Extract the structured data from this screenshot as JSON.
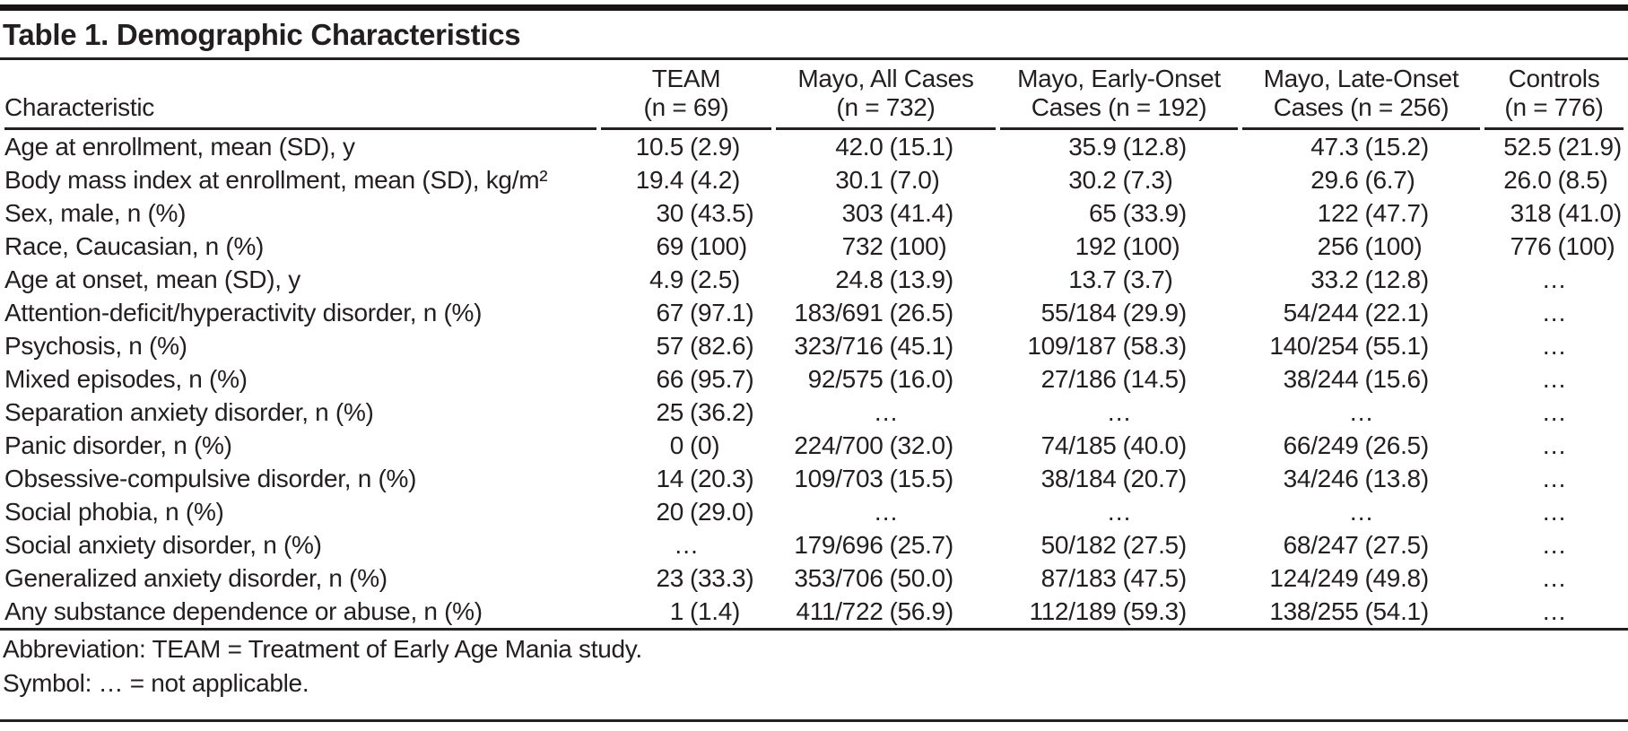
{
  "table": {
    "title": "Table 1. Demographic Characteristics",
    "not_applicable_symbol": "…",
    "columns": [
      {
        "line1": "Characteristic",
        "line2": ""
      },
      {
        "line1": "TEAM",
        "line2": "(n = 69)"
      },
      {
        "line1": "Mayo, All Cases",
        "line2": "(n = 732)"
      },
      {
        "line1": "Mayo, Early-Onset",
        "line2": "Cases (n = 192)"
      },
      {
        "line1": "Mayo, Late-Onset",
        "line2": "Cases (n = 256)"
      },
      {
        "line1": "Controls",
        "line2": "(n = 776)"
      }
    ],
    "rows": [
      {
        "label": "Age at enrollment, mean (SD), y",
        "values": [
          "10.5 (2.9)",
          "42.0 (15.1)",
          "35.9 (12.8)",
          "47.3 (15.2)",
          "52.5 (21.9)"
        ]
      },
      {
        "label": "Body mass index at enrollment, mean (SD), kg/m²",
        "values": [
          "19.4 (4.2)",
          "30.1 (7.0)",
          "30.2 (7.3)",
          "29.6 (6.7)",
          "26.0 (8.5)"
        ]
      },
      {
        "label": "Sex, male, n (%)",
        "values": [
          "30 (43.5)",
          "303 (41.4)",
          "65 (33.9)",
          "122 (47.7)",
          "318 (41.0)"
        ]
      },
      {
        "label": "Race, Caucasian, n (%)",
        "values": [
          "69 (100)",
          "732 (100)",
          "192 (100)",
          "256 (100)",
          "776 (100)"
        ]
      },
      {
        "label": "Age at onset, mean (SD), y",
        "values": [
          "4.9 (2.5)",
          "24.8 (13.9)",
          "13.7 (3.7)",
          "33.2 (12.8)",
          "…"
        ]
      },
      {
        "label": "Attention-deficit/hyperactivity disorder, n (%)",
        "values": [
          "67 (97.1)",
          "183/691 (26.5)",
          "55/184 (29.9)",
          "54/244 (22.1)",
          "…"
        ]
      },
      {
        "label": "Psychosis, n (%)",
        "values": [
          "57 (82.6)",
          "323/716 (45.1)",
          "109/187 (58.3)",
          "140/254 (55.1)",
          "…"
        ]
      },
      {
        "label": "Mixed episodes, n (%)",
        "values": [
          "66 (95.7)",
          "92/575 (16.0)",
          "27/186 (14.5)",
          "38/244 (15.6)",
          "…"
        ]
      },
      {
        "label": "Separation anxiety disorder, n (%)",
        "values": [
          "25 (36.2)",
          "…",
          "…",
          "…",
          "…"
        ]
      },
      {
        "label": "Panic disorder, n (%)",
        "values": [
          "0 (0)",
          "224/700 (32.0)",
          "74/185 (40.0)",
          "66/249 (26.5)",
          "…"
        ]
      },
      {
        "label": "Obsessive-compulsive disorder, n (%)",
        "values": [
          "14 (20.3)",
          "109/703 (15.5)",
          "38/184 (20.7)",
          "34/246 (13.8)",
          "…"
        ]
      },
      {
        "label": "Social phobia, n (%)",
        "values": [
          "20 (29.0)",
          "…",
          "…",
          "…",
          "…"
        ]
      },
      {
        "label": "Social anxiety disorder, n (%)",
        "values": [
          "…",
          "179/696 (25.7)",
          "50/182 (27.5)",
          "68/247 (27.5)",
          "…"
        ]
      },
      {
        "label": "Generalized anxiety disorder, n (%)",
        "values": [
          "23 (33.3)",
          "353/706 (50.0)",
          "87/183 (47.5)",
          "124/249 (49.8)",
          "…"
        ]
      },
      {
        "label": "Any substance dependence or abuse, n (%)",
        "values": [
          "1 (1.4)",
          "411/722 (56.9)",
          "112/189 (59.3)",
          "138/255 (54.1)",
          "…"
        ]
      }
    ]
  },
  "footnotes": [
    "Abbreviation: TEAM = Treatment of Early Age Mania study.",
    "Symbol: … = not applicable."
  ],
  "colors": {
    "text": "#231f20",
    "rule": "#242021",
    "top_bar": "#171415",
    "background": "#ffffff"
  }
}
